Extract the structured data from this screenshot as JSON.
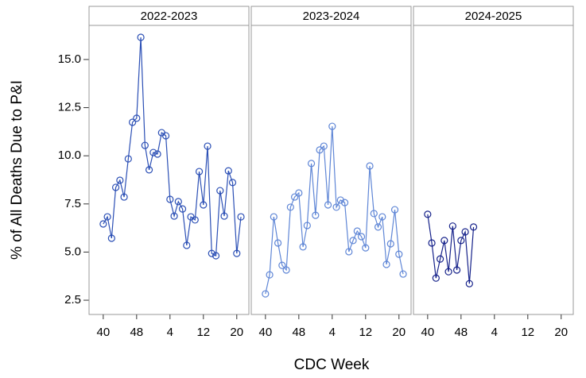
{
  "chart_data": {
    "type": "line",
    "xlabel": "CDC Week",
    "ylabel": "% of All Deaths Due to P&I",
    "ylim": [
      1.76,
      16.77
    ],
    "yticks": [
      {
        "value": 2.5,
        "label": "2.5"
      },
      {
        "value": 5,
        "label": "5.0"
      },
      {
        "value": 7.5,
        "label": "7.5"
      },
      {
        "value": 10,
        "label": "10.0"
      },
      {
        "value": 12.5,
        "label": "12.5"
      },
      {
        "value": 15,
        "label": "15.0"
      }
    ],
    "xlim": [
      -3.4,
      34.9
    ],
    "xticks": [
      {
        "value": 0,
        "label": "40"
      },
      {
        "value": 8,
        "label": "48"
      },
      {
        "value": 16,
        "label": "4"
      },
      {
        "value": 24,
        "label": "12"
      },
      {
        "value": 32,
        "label": "20"
      }
    ],
    "panels": [
      {
        "title": "2022-2023",
        "color": "#2b4fb5",
        "x": [
          0,
          1,
          2,
          3,
          4,
          5,
          6,
          7,
          8,
          9,
          10,
          11,
          12,
          13,
          14,
          15,
          16,
          17,
          18,
          19,
          20,
          21,
          22,
          23,
          24,
          25,
          26,
          27,
          28,
          29,
          30,
          31,
          32,
          33
        ],
        "values": [
          6.46,
          6.83,
          5.72,
          8.36,
          8.73,
          7.86,
          9.84,
          11.74,
          11.95,
          16.15,
          10.54,
          9.27,
          10.17,
          10.09,
          11.2,
          11.04,
          7.74,
          6.87,
          7.62,
          7.24,
          5.35,
          6.83,
          6.67,
          9.18,
          7.45,
          10.5,
          4.93,
          4.81,
          8.19,
          6.87,
          9.22,
          8.61,
          4.93,
          6.83
        ]
      },
      {
        "title": "2023-2024",
        "color": "#5f86d6",
        "x": [
          0,
          1,
          2,
          3,
          4,
          5,
          6,
          7,
          8,
          9,
          10,
          11,
          12,
          13,
          14,
          15,
          16,
          17,
          18,
          19,
          20,
          21,
          22,
          23,
          24,
          25,
          26,
          27,
          28,
          29,
          30,
          31,
          32,
          33
        ],
        "values": [
          2.83,
          3.82,
          6.83,
          5.47,
          4.31,
          4.07,
          7.33,
          7.86,
          8.07,
          5.27,
          6.38,
          9.6,
          6.91,
          10.3,
          10.5,
          7.45,
          11.53,
          7.33,
          7.7,
          7.57,
          5.02,
          5.6,
          6.09,
          5.8,
          5.22,
          9.47,
          7.0,
          6.3,
          6.83,
          4.36,
          5.43,
          7.2,
          4.89,
          3.86
        ]
      },
      {
        "title": "2024-2025",
        "color": "#16228a",
        "x": [
          0,
          1,
          2,
          3,
          4,
          5,
          6,
          7,
          8,
          9,
          10,
          11
        ],
        "values": [
          6.96,
          5.47,
          3.65,
          4.64,
          5.6,
          3.98,
          6.35,
          4.07,
          5.6,
          6.05,
          3.36,
          6.3
        ]
      }
    ]
  }
}
